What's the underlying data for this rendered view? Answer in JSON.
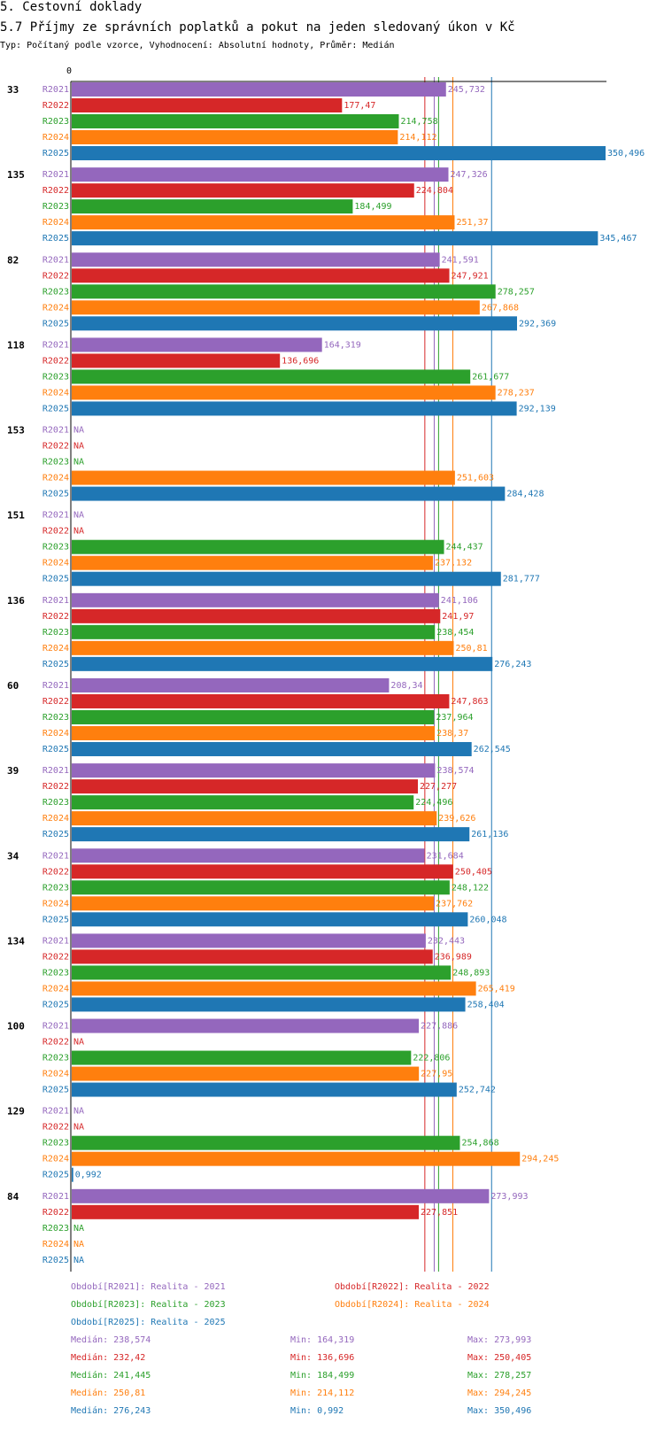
{
  "chart_data": {
    "type": "bar",
    "orientation": "horizontal",
    "title": "5. Cestovní doklady",
    "subtitle": "5.7 Příjmy ze správních poplatků a pokut na jeden sledovaný úkon v Kč",
    "caption": "Typ: Počítaný podle vzorce, Vyhodnocení: Absolutní hodnoty, Průměr: Medián",
    "axis_zero_label": "0",
    "na_label": "NA",
    "xlim": [
      0,
      350.496
    ],
    "series": [
      {
        "key": "R2021",
        "legend": "Období[R2021]: Realita - 2021",
        "color": "#9467bd",
        "median": "Medián: 238,574",
        "min": "Min: 164,319",
        "max": "Max: 273,993",
        "median_value": 238.574
      },
      {
        "key": "R2022",
        "legend": "Období[R2022]: Realita - 2022",
        "color": "#d62728",
        "median": "Medián: 232,42",
        "min": "Min: 136,696",
        "max": "Max: 250,405",
        "median_value": 232.42
      },
      {
        "key": "R2023",
        "legend": "Období[R2023]: Realita - 2023",
        "color": "#2ca02c",
        "median": "Medián: 241,445",
        "min": "Min: 184,499",
        "max": "Max: 278,257",
        "median_value": 241.445
      },
      {
        "key": "R2024",
        "legend": "Období[R2024]: Realita - 2024",
        "color": "#ff7f0e",
        "median": "Medián: 250,81",
        "min": "Min: 214,112",
        "max": "Max: 294,245",
        "median_value": 250.81
      },
      {
        "key": "R2025",
        "legend": "Období[R2025]: Realita - 2025",
        "color": "#1f77b4",
        "median": "Medián: 276,243",
        "min": "Min: 0,992",
        "max": "Max: 350,496",
        "median_value": 276.243
      }
    ],
    "groups": [
      {
        "label": "33",
        "values": [
          245.732,
          177.47,
          214.758,
          214.112,
          350.496
        ],
        "labels": [
          "245,732",
          "177,47",
          "214,758",
          "214,112",
          "350,496"
        ]
      },
      {
        "label": "135",
        "values": [
          247.326,
          224.804,
          184.499,
          251.37,
          345.467
        ],
        "labels": [
          "247,326",
          "224,804",
          "184,499",
          "251,37",
          "345,467"
        ]
      },
      {
        "label": "82",
        "values": [
          241.591,
          247.921,
          278.257,
          267.868,
          292.369
        ],
        "labels": [
          "241,591",
          "247,921",
          "278,257",
          "267,868",
          "292,369"
        ]
      },
      {
        "label": "118",
        "values": [
          164.319,
          136.696,
          261.677,
          278.237,
          292.139
        ],
        "labels": [
          "164,319",
          "136,696",
          "261,677",
          "278,237",
          "292,139"
        ]
      },
      {
        "label": "153",
        "values": [
          null,
          null,
          null,
          251.603,
          284.428
        ],
        "labels": [
          null,
          null,
          null,
          "251,603",
          "284,428"
        ]
      },
      {
        "label": "151",
        "values": [
          null,
          null,
          244.437,
          237.132,
          281.777
        ],
        "labels": [
          null,
          null,
          "244,437",
          "237,132",
          "281,777"
        ]
      },
      {
        "label": "136",
        "values": [
          241.106,
          241.97,
          238.454,
          250.81,
          276.243
        ],
        "labels": [
          "241,106",
          "241,97",
          "238,454",
          "250,81",
          "276,243"
        ]
      },
      {
        "label": "60",
        "values": [
          208.34,
          247.863,
          237.964,
          238.37,
          262.545
        ],
        "labels": [
          "208,34",
          "247,863",
          "237,964",
          "238,37",
          "262,545"
        ]
      },
      {
        "label": "39",
        "values": [
          238.574,
          227.277,
          224.496,
          239.626,
          261.136
        ],
        "labels": [
          "238,574",
          "227,277",
          "224,496",
          "239,626",
          "261,136"
        ]
      },
      {
        "label": "34",
        "values": [
          231.684,
          250.405,
          248.122,
          237.762,
          260.048
        ],
        "labels": [
          "231,684",
          "250,405",
          "248,122",
          "237,762",
          "260,048"
        ]
      },
      {
        "label": "134",
        "values": [
          232.443,
          236.989,
          248.893,
          265.419,
          258.404
        ],
        "labels": [
          "232,443",
          "236,989",
          "248,893",
          "265,419",
          "258,404"
        ]
      },
      {
        "label": "100",
        "values": [
          227.886,
          null,
          222.806,
          227.95,
          252.742
        ],
        "labels": [
          "227,886",
          null,
          "222,806",
          "227,95",
          "252,742"
        ]
      },
      {
        "label": "129",
        "values": [
          null,
          null,
          254.868,
          294.245,
          0.992
        ],
        "labels": [
          null,
          null,
          "254,868",
          "294,245",
          "0,992"
        ]
      },
      {
        "label": "84",
        "values": [
          273.993,
          227.851,
          null,
          null,
          null
        ],
        "labels": [
          "273,993",
          "227,851",
          null,
          null,
          null
        ]
      }
    ]
  }
}
